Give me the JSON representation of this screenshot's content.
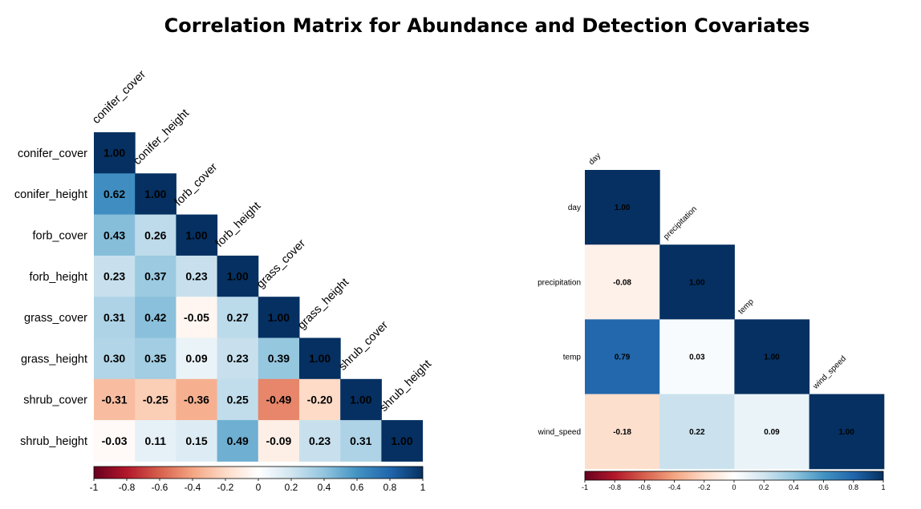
{
  "title": "Correlation Matrix for Abundance and Detection Covariates",
  "chart_data": [
    {
      "type": "heatmap",
      "variables": [
        "conifer_cover",
        "conifer_height",
        "forb_cover",
        "forb_height",
        "grass_cover",
        "grass_height",
        "shrub_cover",
        "shrub_height"
      ],
      "matrix": [
        [
          1.0
        ],
        [
          0.62,
          1.0
        ],
        [
          0.43,
          0.26,
          1.0
        ],
        [
          0.23,
          0.37,
          0.23,
          1.0
        ],
        [
          0.31,
          0.42,
          -0.05,
          0.27,
          1.0
        ],
        [
          0.3,
          0.35,
          0.09,
          0.23,
          0.39,
          1.0
        ],
        [
          -0.31,
          -0.25,
          -0.36,
          0.25,
          -0.49,
          -0.2,
          1.0
        ],
        [
          -0.03,
          0.11,
          0.15,
          0.49,
          -0.09,
          0.23,
          0.31,
          1.0
        ]
      ],
      "colorbar_ticks": [
        "-1",
        "-0.8",
        "-0.6",
        "-0.4",
        "-0.2",
        "0",
        "0.2",
        "0.4",
        "0.6",
        "0.8",
        "1"
      ],
      "color_range": [
        -1,
        1
      ],
      "colormap": [
        "#67001f",
        "#b2182b",
        "#d6604d",
        "#f4a582",
        "#fddbc7",
        "#ffffff",
        "#d1e5f0",
        "#92c5de",
        "#4393c3",
        "#2166ac",
        "#053061"
      ]
    },
    {
      "type": "heatmap",
      "variables": [
        "day",
        "precipitation",
        "temp",
        "wind_speed"
      ],
      "matrix": [
        [
          1.0
        ],
        [
          -0.08,
          1.0
        ],
        [
          0.79,
          0.03,
          1.0
        ],
        [
          -0.18,
          0.22,
          0.09,
          1.0
        ]
      ],
      "colorbar_ticks": [
        "-1",
        "-0.8",
        "-0.6",
        "-0.4",
        "-0.2",
        "0",
        "0.2",
        "0.4",
        "0.6",
        "0.8",
        "1"
      ],
      "color_range": [
        -1,
        1
      ],
      "colormap": [
        "#67001f",
        "#b2182b",
        "#d6604d",
        "#f4a582",
        "#fddbc7",
        "#ffffff",
        "#d1e5f0",
        "#92c5de",
        "#4393c3",
        "#2166ac",
        "#053061"
      ]
    }
  ]
}
